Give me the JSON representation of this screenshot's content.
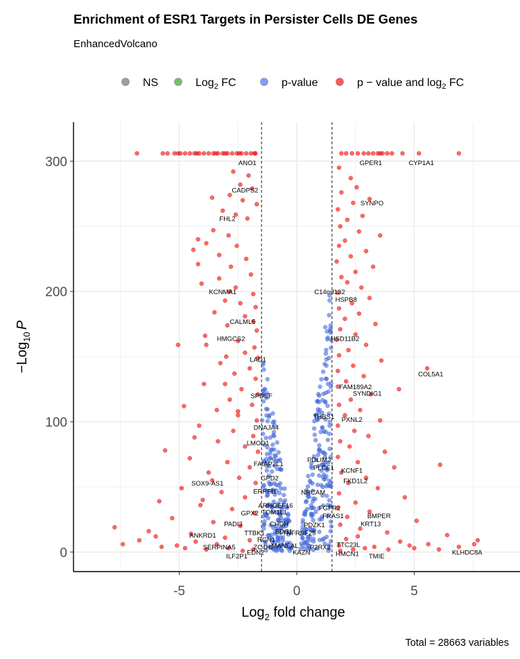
{
  "chart_data": {
    "type": "scatter",
    "title": "Enrichment of ESR1 Targets in Persister Cells DE Genes",
    "subtitle": "EnhancedVolcano",
    "xlabel_main": "Log",
    "xlabel_sub": "2",
    "xlabel_rest": " fold change",
    "ylabel_main": "−Log",
    "ylabel_sub": "10",
    "ylabel_var": "P",
    "caption": "Total = 28663 variables",
    "xlim": [
      -9.5,
      9.5
    ],
    "ylim": [
      -15,
      330
    ],
    "x_ticks": [
      -5,
      0,
      5
    ],
    "x_tick_labels": [
      "-5",
      "0",
      "5"
    ],
    "y_ticks": [
      0,
      100,
      200,
      300
    ],
    "y_tick_labels": [
      "0",
      "100",
      "200",
      "300"
    ],
    "fc_cutoff": 1.5,
    "grid": true,
    "legend_position": "top",
    "legend": [
      {
        "key": "ns",
        "main": "NS",
        "sub": "",
        "rest": "",
        "color": "#8c8c8c"
      },
      {
        "key": "fc",
        "main": "Log",
        "sub": "2",
        "rest": " FC",
        "color": "#5fb15f"
      },
      {
        "key": "p",
        "main": "p-value",
        "sub": "",
        "rest": "",
        "color": "#6e8df0"
      },
      {
        "key": "both",
        "main": "p − value and log",
        "sub": "2",
        "rest": " FC",
        "color": "#ff3b3b"
      }
    ],
    "colors": {
      "ns": "#8c8c8c",
      "fc": "#5fb15f",
      "p": "#4169e1",
      "both": "#ff0000"
    },
    "labels": [
      {
        "text": "ANO1",
        "x": -2.1,
        "y": 297
      },
      {
        "text": "GPER1",
        "x": 3.15,
        "y": 297
      },
      {
        "text": "CYP1A1",
        "x": 5.3,
        "y": 297
      },
      {
        "text": "CADPS2",
        "x": -2.2,
        "y": 276
      },
      {
        "text": "SYNPO",
        "x": 3.2,
        "y": 266
      },
      {
        "text": "FHL2",
        "x": -2.95,
        "y": 254
      },
      {
        "text": "KCNMA1",
        "x": -3.15,
        "y": 198
      },
      {
        "text": "C14orf132",
        "x": 1.4,
        "y": 198
      },
      {
        "text": "HSPB8",
        "x": 2.1,
        "y": 192
      },
      {
        "text": "CALML5",
        "x": -2.3,
        "y": 175
      },
      {
        "text": "HMGCS2",
        "x": -2.8,
        "y": 162
      },
      {
        "text": "HSD11B2",
        "x": 2.05,
        "y": 162
      },
      {
        "text": "LAD1",
        "x": -1.65,
        "y": 146
      },
      {
        "text": "COL5A1",
        "x": 5.7,
        "y": 135
      },
      {
        "text": "FAM189A2",
        "x": 2.5,
        "y": 125
      },
      {
        "text": "SYNDIG1",
        "x": 3.0,
        "y": 120
      },
      {
        "text": "SPDEF",
        "x": -1.5,
        "y": 118
      },
      {
        "text": "THBS1",
        "x": 1.15,
        "y": 102
      },
      {
        "text": "PXNL2",
        "x": 2.35,
        "y": 100
      },
      {
        "text": "DNAJA4",
        "x": -1.3,
        "y": 94
      },
      {
        "text": "LMOD1",
        "x": -1.65,
        "y": 82
      },
      {
        "text": "PDLIM3",
        "x": 0.95,
        "y": 69
      },
      {
        "text": "FAIAP2L1",
        "x": -1.2,
        "y": 66
      },
      {
        "text": "PLCE1",
        "x": 1.15,
        "y": 63
      },
      {
        "text": "KCNF1",
        "x": 2.35,
        "y": 61
      },
      {
        "text": "GPD2",
        "x": -1.15,
        "y": 55
      },
      {
        "text": "SOX9-AS1",
        "x": -3.8,
        "y": 51
      },
      {
        "text": "FKD1L2",
        "x": 2.5,
        "y": 53
      },
      {
        "text": "ERRFI1",
        "x": -1.35,
        "y": 45
      },
      {
        "text": "NRCAM",
        "x": 0.7,
        "y": 44
      },
      {
        "text": "ARHGEF16",
        "x": -0.9,
        "y": 34
      },
      {
        "text": "FGFR2",
        "x": 1.4,
        "y": 32
      },
      {
        "text": "TOM1L1",
        "x": -0.95,
        "y": 29
      },
      {
        "text": "GPX2",
        "x": -2.0,
        "y": 28
      },
      {
        "text": "FRAS1",
        "x": 1.55,
        "y": 26
      },
      {
        "text": "BMPER",
        "x": 3.5,
        "y": 26
      },
      {
        "text": "CHDH",
        "x": -0.75,
        "y": 20
      },
      {
        "text": "PADI3",
        "x": -2.7,
        "y": 20
      },
      {
        "text": "PDZK1",
        "x": 0.75,
        "y": 19
      },
      {
        "text": "KRT13",
        "x": 3.15,
        "y": 20
      },
      {
        "text": "TTBK1",
        "x": -1.8,
        "y": 13
      },
      {
        "text": "SDC1",
        "x": -0.55,
        "y": 14
      },
      {
        "text": "TNFRSF25",
        "x": 0.1,
        "y": 13
      },
      {
        "text": "ANKRD1",
        "x": -4.0,
        "y": 11
      },
      {
        "text": "RCN1",
        "x": -1.3,
        "y": 8
      },
      {
        "text": "MANEAL",
        "x": -0.5,
        "y": 3
      },
      {
        "text": "TTC23L",
        "x": 2.2,
        "y": 4
      },
      {
        "text": "SERPINA5",
        "x": -3.3,
        "y": 2
      },
      {
        "text": "ZC4H2",
        "x": -1.4,
        "y": 2
      },
      {
        "text": "P2RX2",
        "x": 1.0,
        "y": 2
      },
      {
        "text": "EDN2",
        "x": -1.75,
        "y": -2
      },
      {
        "text": "KAZN",
        "x": 0.2,
        "y": -2
      },
      {
        "text": "HMCN1",
        "x": 2.15,
        "y": -3
      },
      {
        "text": "KLHDC8A",
        "x": 7.25,
        "y": -2
      },
      {
        "text": "ILF2P1",
        "x": -2.55,
        "y": -5
      },
      {
        "text": "TMIE",
        "x": 3.4,
        "y": -5
      }
    ],
    "points": [
      [
        -6.8,
        306
      ],
      [
        -5.7,
        306
      ],
      [
        -5.5,
        306
      ],
      [
        -5.2,
        306
      ],
      [
        -5.05,
        306
      ],
      [
        -4.95,
        306
      ],
      [
        -4.75,
        306
      ],
      [
        -4.55,
        306
      ],
      [
        -4.35,
        306
      ],
      [
        -4.15,
        306
      ],
      [
        -3.95,
        306
      ],
      [
        -3.75,
        306
      ],
      [
        -3.55,
        306
      ],
      [
        -3.35,
        306
      ],
      [
        -3.15,
        306
      ],
      [
        -2.95,
        306
      ],
      [
        -2.75,
        306
      ],
      [
        -2.55,
        306
      ],
      [
        -2.35,
        306
      ],
      [
        -2.15,
        306
      ],
      [
        -1.95,
        306
      ],
      [
        -1.8,
        306
      ],
      [
        -3.05,
        306
      ],
      [
        -3.45,
        306
      ],
      [
        -4.25,
        306
      ],
      [
        -2.45,
        306
      ],
      [
        -1.75,
        306
      ],
      [
        1.9,
        306
      ],
      [
        2.1,
        306
      ],
      [
        2.35,
        306
      ],
      [
        2.6,
        306
      ],
      [
        2.85,
        306
      ],
      [
        3.05,
        306
      ],
      [
        3.25,
        306
      ],
      [
        3.45,
        306
      ],
      [
        3.65,
        306
      ],
      [
        3.85,
        306
      ],
      [
        4.05,
        306
      ],
      [
        4.5,
        306
      ],
      [
        5.2,
        306
      ],
      [
        6.9,
        306
      ],
      [
        3.55,
        306
      ],
      [
        -2.7,
        292
      ],
      [
        -2.05,
        289
      ],
      [
        -2.4,
        282
      ],
      [
        -1.9,
        279
      ],
      [
        -3.6,
        272
      ],
      [
        -2.85,
        274
      ],
      [
        -2.3,
        270
      ],
      [
        -1.7,
        267
      ],
      [
        -3.15,
        262
      ],
      [
        -2.6,
        259
      ],
      [
        -2.1,
        256
      ],
      [
        -3.55,
        247
      ],
      [
        -2.9,
        243
      ],
      [
        -3.85,
        237
      ],
      [
        -2.55,
        235
      ],
      [
        -4.4,
        232
      ],
      [
        -3.3,
        228
      ],
      [
        -2.15,
        225
      ],
      [
        -4.2,
        221
      ],
      [
        -2.8,
        219
      ],
      [
        -1.95,
        213
      ],
      [
        -3.3,
        210
      ],
      [
        -4.05,
        206
      ],
      [
        -2.6,
        203
      ],
      [
        -1.85,
        198
      ],
      [
        -3.05,
        193
      ],
      [
        -2.4,
        191
      ],
      [
        -1.75,
        188
      ],
      [
        -3.5,
        184
      ],
      [
        -2.2,
        181
      ],
      [
        -1.85,
        177
      ],
      [
        -2.95,
        174
      ],
      [
        -1.7,
        170
      ],
      [
        -3.9,
        166
      ],
      [
        -2.5,
        162
      ],
      [
        -1.8,
        157
      ],
      [
        -5.05,
        159
      ],
      [
        -3.85,
        159
      ],
      [
        -2.2,
        153
      ],
      [
        -1.65,
        149
      ],
      [
        -3.25,
        145
      ],
      [
        -2.0,
        141
      ],
      [
        -2.65,
        137
      ],
      [
        -1.75,
        133
      ],
      [
        -3.05,
        129
      ],
      [
        -2.35,
        125
      ],
      [
        -1.65,
        121
      ],
      [
        -2.85,
        117
      ],
      [
        -1.9,
        113
      ],
      [
        -3.4,
        109
      ],
      [
        -2.5,
        105
      ],
      [
        -1.7,
        101
      ],
      [
        -4.15,
        97
      ],
      [
        -2.7,
        93
      ],
      [
        -1.85,
        89
      ],
      [
        -3.35,
        85
      ],
      [
        -2.2,
        81
      ],
      [
        -1.65,
        77
      ],
      [
        -4.55,
        72
      ],
      [
        -2.95,
        69
      ],
      [
        -2.0,
        65
      ],
      [
        -3.75,
        61
      ],
      [
        -2.45,
        57
      ],
      [
        -1.75,
        53
      ],
      [
        -4.9,
        49
      ],
      [
        -3.2,
        46
      ],
      [
        -2.2,
        42
      ],
      [
        -5.85,
        39
      ],
      [
        -4.1,
        36
      ],
      [
        -2.75,
        33
      ],
      [
        -1.8,
        30
      ],
      [
        -5.3,
        26
      ],
      [
        -3.55,
        23
      ],
      [
        -2.4,
        20
      ],
      [
        -7.75,
        19
      ],
      [
        -6.3,
        16
      ],
      [
        -4.5,
        14
      ],
      [
        -3.05,
        11
      ],
      [
        -2.0,
        9
      ],
      [
        -7.4,
        6
      ],
      [
        -5.75,
        4
      ],
      [
        -4.75,
        3
      ],
      [
        -3.85,
        2
      ],
      [
        -2.9,
        3
      ],
      [
        -2.3,
        1
      ],
      [
        -1.85,
        2
      ],
      [
        -5.1,
        5
      ],
      [
        -4.3,
        8
      ],
      [
        -3.4,
        6
      ],
      [
        -6.7,
        9
      ],
      [
        -6.0,
        12
      ],
      [
        -4.0,
        40
      ],
      [
        -3.6,
        55
      ],
      [
        -4.35,
        88
      ],
      [
        -2.5,
        108
      ],
      [
        -5.6,
        78
      ],
      [
        -4.8,
        112
      ],
      [
        -3.95,
        129
      ],
      [
        -3.0,
        150
      ],
      [
        -2.85,
        200
      ],
      [
        -4.2,
        240
      ],
      [
        1.8,
        295
      ],
      [
        2.3,
        287
      ],
      [
        2.55,
        280
      ],
      [
        1.9,
        276
      ],
      [
        3.1,
        271
      ],
      [
        2.4,
        268
      ],
      [
        1.75,
        263
      ],
      [
        2.8,
        258
      ],
      [
        2.15,
        255
      ],
      [
        1.85,
        250
      ],
      [
        2.65,
        246
      ],
      [
        3.55,
        243
      ],
      [
        2.05,
        239
      ],
      [
        1.8,
        235
      ],
      [
        2.95,
        231
      ],
      [
        2.3,
        227
      ],
      [
        1.7,
        223
      ],
      [
        3.25,
        219
      ],
      [
        2.5,
        215
      ],
      [
        1.9,
        211
      ],
      [
        2.15,
        207
      ],
      [
        2.75,
        203
      ],
      [
        1.75,
        199
      ],
      [
        3.1,
        195
      ],
      [
        2.35,
        191
      ],
      [
        1.8,
        187
      ],
      [
        2.65,
        183
      ],
      [
        2.05,
        179
      ],
      [
        3.35,
        175
      ],
      [
        1.85,
        171
      ],
      [
        2.5,
        167
      ],
      [
        1.7,
        163
      ],
      [
        2.95,
        159
      ],
      [
        2.2,
        155
      ],
      [
        1.8,
        151
      ],
      [
        3.6,
        147
      ],
      [
        2.4,
        143
      ],
      [
        1.75,
        139
      ],
      [
        5.55,
        141
      ],
      [
        2.85,
        135
      ],
      [
        2.1,
        131
      ],
      [
        1.75,
        127
      ],
      [
        4.35,
        125
      ],
      [
        3.15,
        121
      ],
      [
        2.3,
        117
      ],
      [
        1.8,
        113
      ],
      [
        2.7,
        109
      ],
      [
        2.05,
        105
      ],
      [
        3.55,
        101
      ],
      [
        1.75,
        97
      ],
      [
        2.45,
        93
      ],
      [
        3.05,
        89
      ],
      [
        1.85,
        85
      ],
      [
        2.25,
        81
      ],
      [
        3.75,
        77
      ],
      [
        1.75,
        73
      ],
      [
        2.6,
        69
      ],
      [
        4.15,
        65
      ],
      [
        6.1,
        67
      ],
      [
        1.9,
        61
      ],
      [
        2.95,
        57
      ],
      [
        2.2,
        53
      ],
      [
        3.45,
        49
      ],
      [
        1.8,
        45
      ],
      [
        4.6,
        42
      ],
      [
        2.5,
        38
      ],
      [
        1.75,
        34
      ],
      [
        3.1,
        31
      ],
      [
        2.15,
        27
      ],
      [
        5.1,
        24
      ],
      [
        1.85,
        21
      ],
      [
        2.7,
        18
      ],
      [
        3.85,
        15
      ],
      [
        6.4,
        13
      ],
      [
        2.1,
        10
      ],
      [
        4.4,
        8
      ],
      [
        5.6,
        6
      ],
      [
        1.8,
        5
      ],
      [
        2.9,
        3
      ],
      [
        3.9,
        2
      ],
      [
        5.0,
        3
      ],
      [
        6.05,
        2
      ],
      [
        6.9,
        4
      ],
      [
        7.55,
        6
      ],
      [
        7.7,
        9
      ],
      [
        1.85,
        1
      ],
      [
        2.4,
        2
      ],
      [
        3.3,
        4
      ],
      [
        4.8,
        5
      ],
      [
        2.6,
        12
      ]
    ]
  }
}
